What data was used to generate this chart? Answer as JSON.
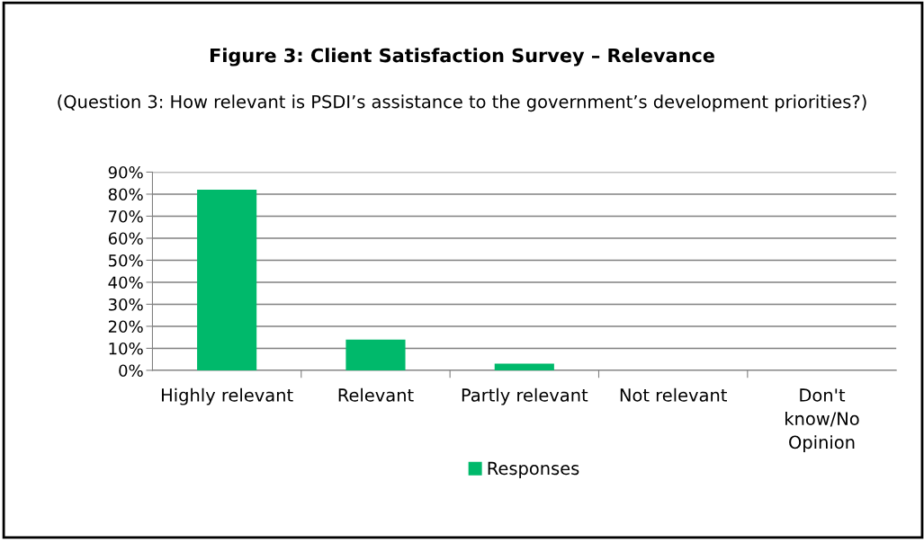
{
  "chart_data": {
    "type": "bar",
    "title": "Figure 3: Client Satisfaction Survey – Relevance",
    "subtitle": "(Question 3: How relevant is PSDI’s assistance to the government’s development priorities?)",
    "categories": [
      "Highly relevant",
      "Relevant",
      "Partly relevant",
      "Not relevant",
      "Don't\nknow/No\nOpinion"
    ],
    "series": [
      {
        "name": "Responses",
        "color": "#00b96b",
        "values": [
          82,
          14,
          3,
          0,
          0
        ]
      }
    ],
    "ylim": [
      0,
      90
    ],
    "yticks": [
      {
        "value": 0,
        "label": "0%"
      },
      {
        "value": 10,
        "label": "10%"
      },
      {
        "value": 20,
        "label": "20%"
      },
      {
        "value": 30,
        "label": "30%"
      },
      {
        "value": 40,
        "label": "40%"
      },
      {
        "value": 50,
        "label": "50%"
      },
      {
        "value": 60,
        "label": "60%"
      },
      {
        "value": 70,
        "label": "70%"
      },
      {
        "value": 80,
        "label": "80%"
      },
      {
        "value": 90,
        "label": "90%"
      }
    ],
    "grid": "y",
    "legend": "bottom"
  }
}
